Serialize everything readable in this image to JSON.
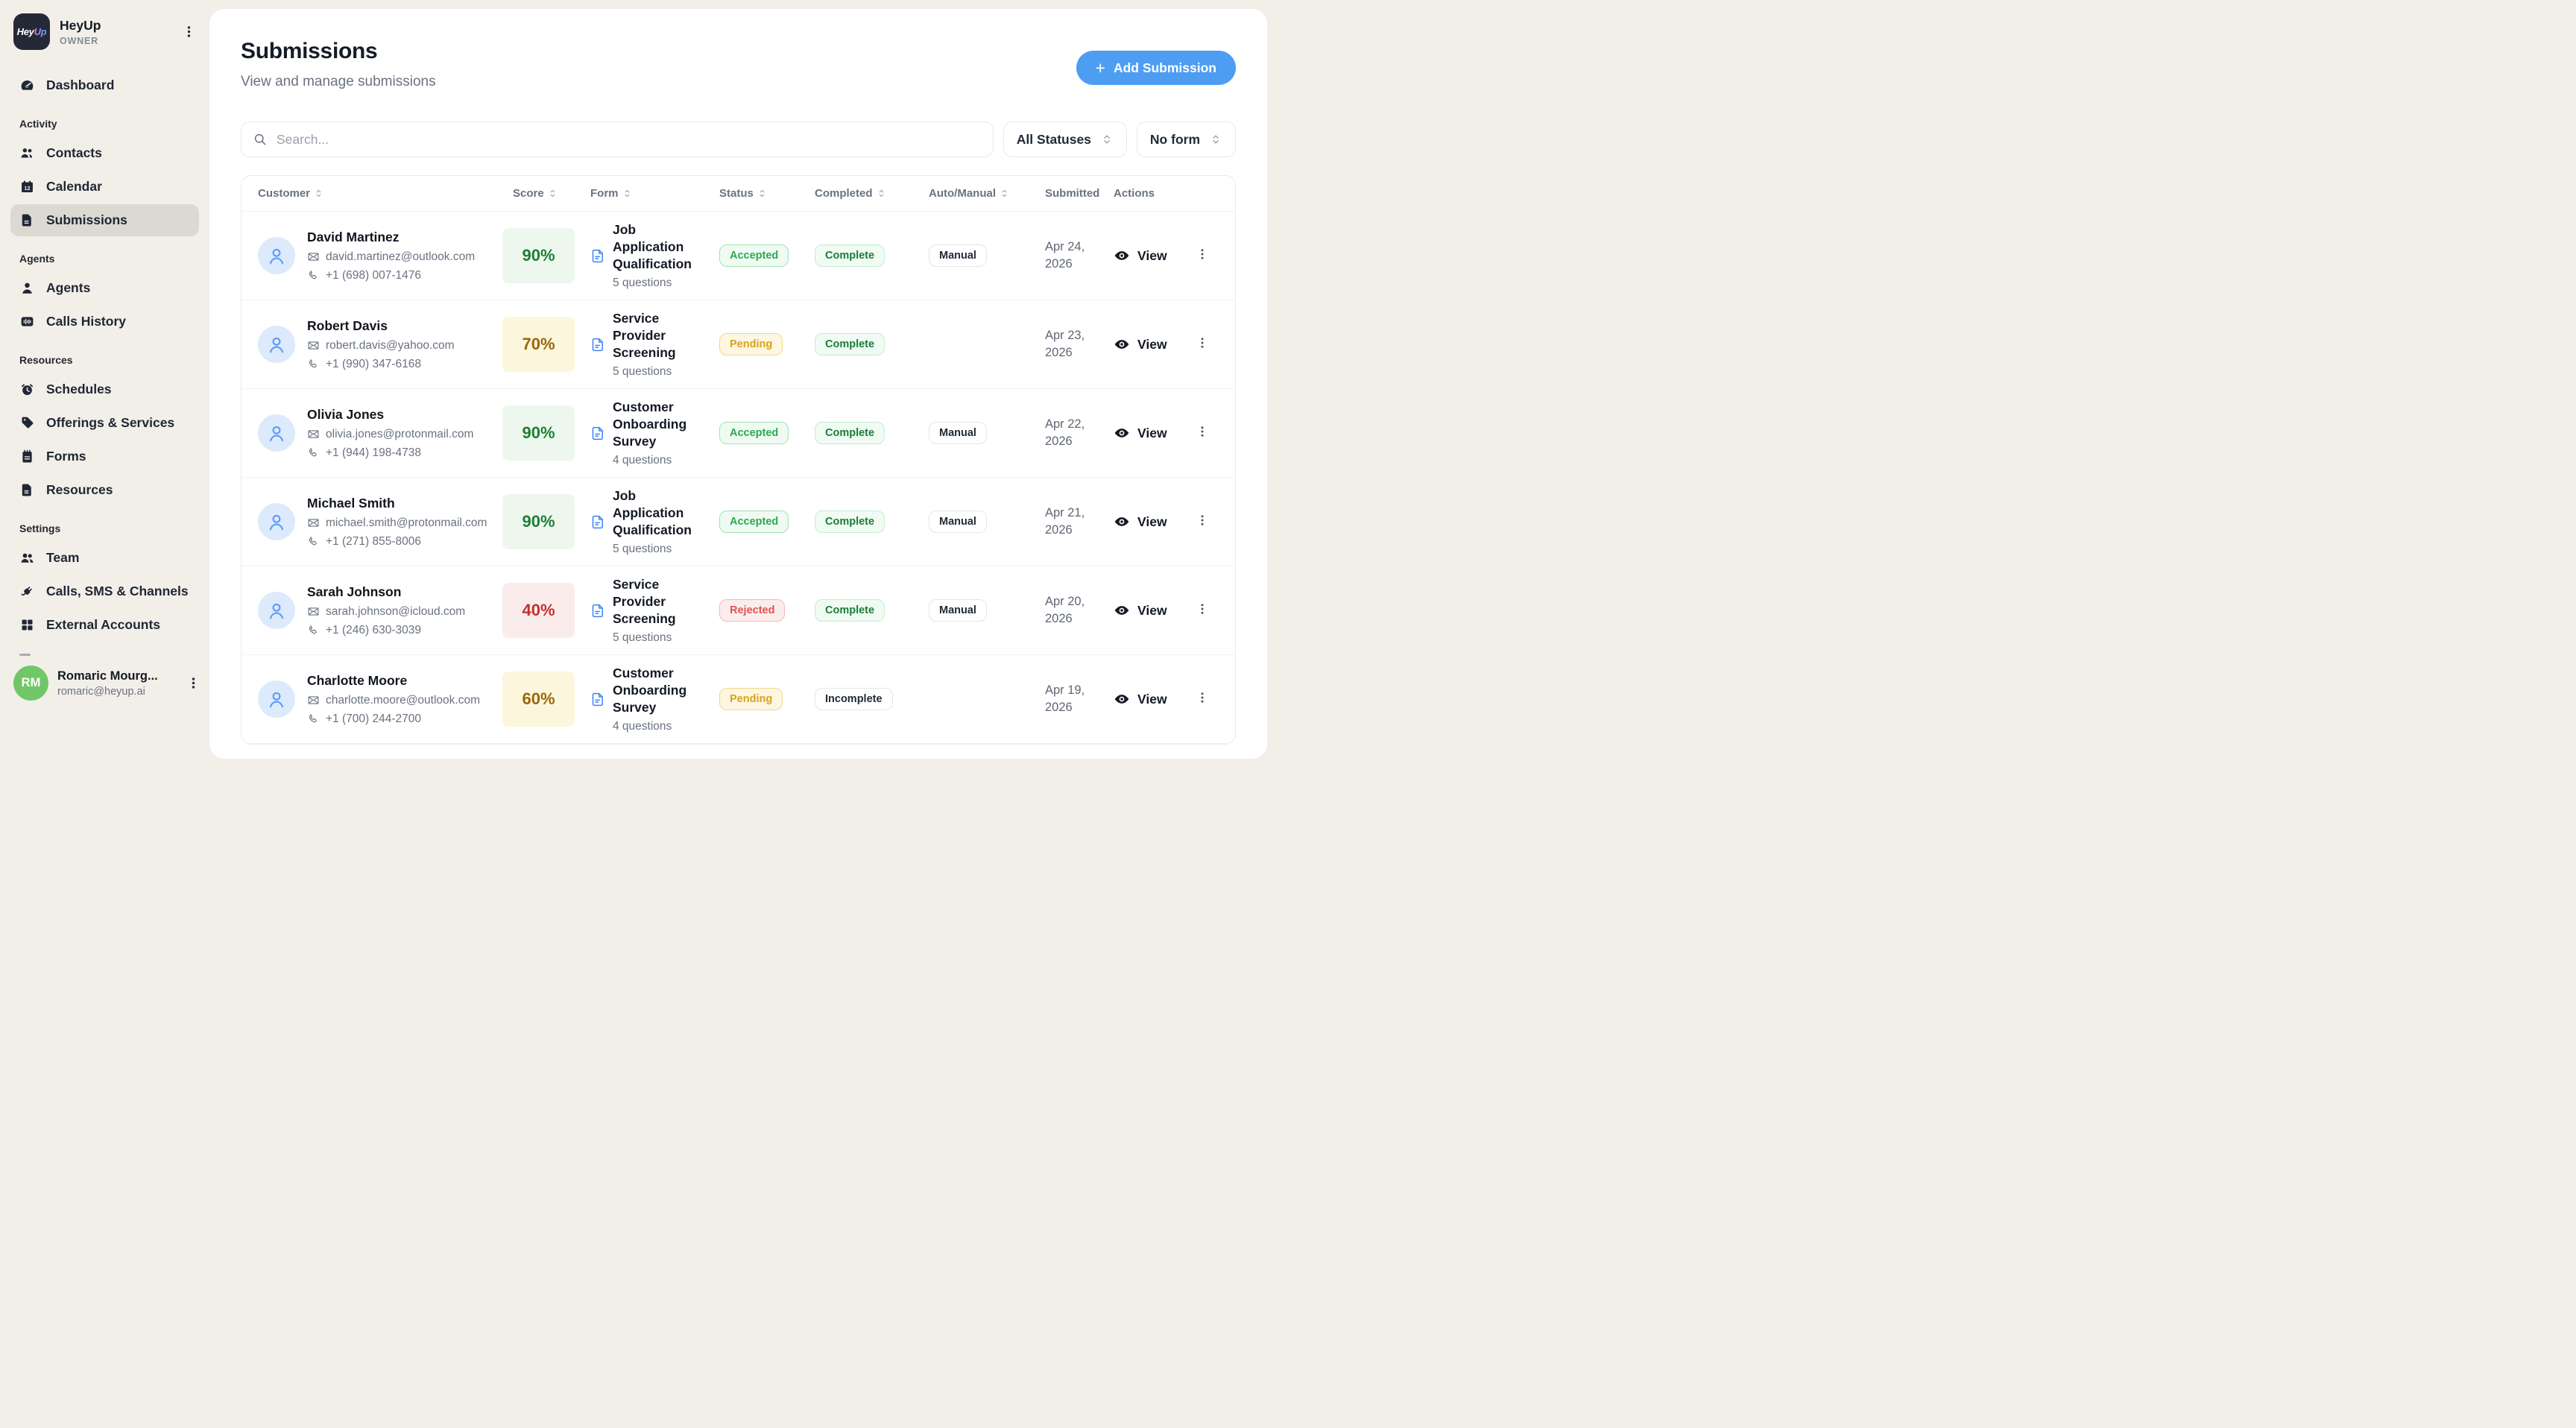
{
  "brand": {
    "name": "HeyUp",
    "role": "OWNER",
    "logo_hey": "Hey",
    "logo_up": "Up"
  },
  "sidebar": {
    "sections": [
      {
        "label": "",
        "items": [
          {
            "icon": "gauge-icon",
            "label": "Dashboard",
            "active": false
          }
        ]
      },
      {
        "label": "Activity",
        "items": [
          {
            "icon": "contacts-icon",
            "label": "Contacts",
            "active": false
          },
          {
            "icon": "calendar-icon",
            "label": "Calendar",
            "active": false
          },
          {
            "icon": "file-icon",
            "label": "Submissions",
            "active": true
          }
        ]
      },
      {
        "label": "Agents",
        "items": [
          {
            "icon": "person-icon",
            "label": "Agents",
            "active": false
          },
          {
            "icon": "waveform-icon",
            "label": "Calls History",
            "active": false
          }
        ]
      },
      {
        "label": "Resources",
        "items": [
          {
            "icon": "clock-icon",
            "label": "Schedules",
            "active": false
          },
          {
            "icon": "tag-icon",
            "label": "Offerings & Services",
            "active": false
          },
          {
            "icon": "notepad-icon",
            "label": "Forms",
            "active": false
          },
          {
            "icon": "file-icon",
            "label": "Resources",
            "active": false
          }
        ]
      },
      {
        "label": "Settings",
        "items": [
          {
            "icon": "team-icon",
            "label": "Team",
            "active": false
          },
          {
            "icon": "plug-icon",
            "label": "Calls, SMS & Channels",
            "active": false
          },
          {
            "icon": "grid-icon",
            "label": "External Accounts",
            "active": false
          }
        ]
      }
    ],
    "user": {
      "initials": "RM",
      "name": "Romaric Mourg...",
      "email": "romaric@heyup.ai"
    }
  },
  "header": {
    "title": "Submissions",
    "subtitle": "View and manage submissions",
    "add_button_label": "Add Submission"
  },
  "filters": {
    "search_placeholder": "Search...",
    "status_dropdown": "All Statuses",
    "form_dropdown": "No form"
  },
  "table": {
    "view_label": "View",
    "columns": [
      {
        "label": "Customer",
        "sortable": true
      },
      {
        "label": "Score",
        "sortable": true
      },
      {
        "label": "Form",
        "sortable": true
      },
      {
        "label": "Status",
        "sortable": true
      },
      {
        "label": "Completed",
        "sortable": true
      },
      {
        "label": "Auto/Manual",
        "sortable": true
      },
      {
        "label": "Submitted",
        "sortable": true
      },
      {
        "label": "Actions",
        "sortable": false
      }
    ],
    "rows": [
      {
        "name": "David Martinez",
        "email": "david.martinez@outlook.com",
        "phone": "+1 (698) 007-1476",
        "score": "90%",
        "score_tone": "green",
        "form": "Job Application Qualification",
        "questions": "5 questions",
        "status": "Accepted",
        "completed": "Complete",
        "auto_manual": "Manual",
        "submitted": "Apr 24, 2026"
      },
      {
        "name": "Robert Davis",
        "email": "robert.davis@yahoo.com",
        "phone": "+1 (990) 347-6168",
        "score": "70%",
        "score_tone": "amber",
        "form": "Service Provider Screening",
        "questions": "5 questions",
        "status": "Pending",
        "completed": "Complete",
        "auto_manual": "",
        "submitted": "Apr 23, 2026"
      },
      {
        "name": "Olivia Jones",
        "email": "olivia.jones@protonmail.com",
        "phone": "+1 (944) 198-4738",
        "score": "90%",
        "score_tone": "green",
        "form": "Customer Onboarding Survey",
        "questions": "4 questions",
        "status": "Accepted",
        "completed": "Complete",
        "auto_manual": "Manual",
        "submitted": "Apr 22, 2026"
      },
      {
        "name": "Michael Smith",
        "email": "michael.smith@protonmail.com",
        "phone": "+1 (271) 855-8006",
        "score": "90%",
        "score_tone": "green",
        "form": "Job Application Qualification",
        "questions": "5 questions",
        "status": "Accepted",
        "completed": "Complete",
        "auto_manual": "Manual",
        "submitted": "Apr 21, 2026"
      },
      {
        "name": "Sarah Johnson",
        "email": "sarah.johnson@icloud.com",
        "phone": "+1 (246) 630-3039",
        "score": "40%",
        "score_tone": "red",
        "form": "Service Provider Screening",
        "questions": "5 questions",
        "status": "Rejected",
        "completed": "Complete",
        "auto_manual": "Manual",
        "submitted": "Apr 20, 2026"
      },
      {
        "name": "Charlotte Moore",
        "email": "charlotte.moore@outlook.com",
        "phone": "+1 (700) 244-2700",
        "score": "60%",
        "score_tone": "amber",
        "form": "Customer Onboarding Survey",
        "questions": "4 questions",
        "status": "Pending",
        "completed": "Incomplete",
        "auto_manual": "",
        "submitted": "Apr 19, 2026"
      }
    ]
  },
  "colors": {
    "accent_blue": "#4D9DF3",
    "sidebar_bg": "#F2EFE9",
    "active_item_bg": "#DCD9D3",
    "accepted_green": "#2EA852",
    "complete_green": "#1C7C36",
    "pending_amber": "#D9A21B",
    "rejected_red": "#E25151",
    "user_avatar_green": "#71C767"
  }
}
